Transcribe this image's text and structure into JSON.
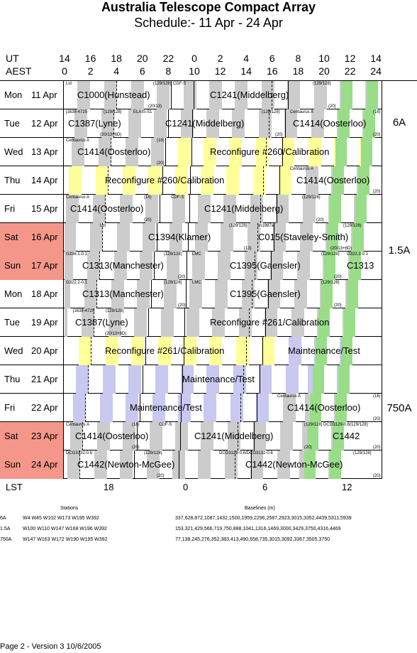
{
  "header": {
    "title": "Australia Telescope Compact Array",
    "subtitle": "Schedule:- 11 Apr - 24 Apr",
    "ut_label": "UT",
    "aest_label": "AEST",
    "ut_ticks": [
      "14",
      "16",
      "18",
      "20",
      "22",
      "0",
      "2",
      "4",
      "6",
      "8",
      "10",
      "12",
      "14"
    ],
    "aest_ticks": [
      "0",
      "2",
      "4",
      "6",
      "8",
      "10",
      "12",
      "14",
      "16",
      "18",
      "20",
      "22",
      "24"
    ]
  },
  "days": [
    {
      "dow": "Mon",
      "date": "11 Apr",
      "weekend": false,
      "labels": [
        {
          "t": "C1000(Hunstead)",
          "x": 18
        },
        {
          "t": "C1241(Middelberg)",
          "x": 205
        }
      ],
      "small": [
        {
          "t": "Lst",
          "x": 2,
          "top": true
        },
        {
          "t": "(129/128)",
          "x": 125,
          "top": true
        },
        {
          "t": "(20/13)",
          "x": 118,
          "top": false
        },
        {
          "t": "CDF-S",
          "x": 153,
          "top": true
        },
        {
          "t": "(129/128)",
          "x": 350,
          "top": true
        },
        {
          "t": "(20)",
          "x": 372,
          "top": false
        }
      ]
    },
    {
      "dow": "Tue",
      "date": "12 Apr",
      "weekend": false,
      "labels": [
        {
          "t": "C1387(Lyne)",
          "x": 5
        },
        {
          "t": "C1241(Middelberg)",
          "x": 142
        },
        {
          "t": "C1414(Oosterloo)",
          "x": 322
        }
      ],
      "small": [
        {
          "t": "j1638-4725",
          "x": 2,
          "top": true
        },
        {
          "t": "(129/128)",
          "x": 55,
          "top": true
        },
        {
          "t": "ELAIS-S1",
          "x": 97,
          "top": true
        },
        {
          "t": "(20/13+6D)",
          "x": 50,
          "top": false
        },
        {
          "t": "(129/128)",
          "x": 278,
          "top": true
        },
        {
          "t": "(20)",
          "x": 297,
          "top": false
        },
        {
          "t": "Centaurus A",
          "x": 318,
          "top": true
        },
        {
          "t": "(16)",
          "x": 435,
          "top": true
        },
        {
          "t": "(20)",
          "x": 435,
          "top": false
        }
      ]
    },
    {
      "dow": "Wed",
      "date": "13 Apr",
      "weekend": false,
      "labels": [
        {
          "t": "C1414(Oosterloo)",
          "x": 18
        },
        {
          "t": "Reconfigure #260/Calibration",
          "x": 205
        }
      ],
      "small": [
        {
          "t": "Centaurus A",
          "x": 2,
          "top": true
        },
        {
          "t": "(16)",
          "x": 130,
          "top": true
        },
        {
          "t": "(20)",
          "x": 130,
          "top": false
        }
      ]
    },
    {
      "dow": "Thu",
      "date": "14 Apr",
      "weekend": false,
      "labels": [
        {
          "t": "Reconfigure #260/Calibration",
          "x": 57
        },
        {
          "t": "C1414(Oosterloo)",
          "x": 327
        }
      ],
      "small": [
        {
          "t": "Centaurus A",
          "x": 318,
          "top": true
        },
        {
          "t": "(20)",
          "x": 435,
          "top": false
        }
      ]
    },
    {
      "dow": "Fri",
      "date": "15 Apr",
      "weekend": false,
      "labels": [
        {
          "t": "C1414(Oosterloo)",
          "x": 8
        },
        {
          "t": "C1241(Middelberg)",
          "x": 197
        }
      ],
      "small": [
        {
          "t": "Centaurus A",
          "x": 2,
          "top": true
        },
        {
          "t": "(16)",
          "x": 112,
          "top": true
        },
        {
          "t": "(20)",
          "x": 112,
          "top": false
        },
        {
          "t": "CDF-S",
          "x": 150,
          "top": true
        },
        {
          "t": "(129/128)",
          "x": 335,
          "top": true
        },
        {
          "t": "(20)",
          "x": 355,
          "top": false
        }
      ]
    },
    {
      "dow": "Sat",
      "date": "16 Apr",
      "weekend": true,
      "labels": [
        {
          "t": "C1394(Klamer)",
          "x": 118
        },
        {
          "t": "C015(Staveley-Smith)",
          "x": 273
        }
      ],
      "small": [
        {
          "t": "Lst",
          "x": 50,
          "top": true
        },
        {
          "t": "(129/128)",
          "x": 232,
          "top": true
        },
        {
          "t": "(13)",
          "x": 253,
          "top": false
        },
        {
          "t": "sn1987a",
          "x": 272,
          "top": true
        },
        {
          "t": "(129/128)",
          "x": 393,
          "top": true
        },
        {
          "t": "(20/13+6D)",
          "x": 375,
          "top": false
        }
      ]
    },
    {
      "dow": "Sun",
      "date": "17 Apr",
      "weekend": true,
      "labels": [
        {
          "t": "C1313(Manchester)",
          "x": 25
        },
        {
          "t": "C1395(Gaensler)",
          "x": 233
        },
        {
          "t": "C1313",
          "x": 398
        }
      ],
      "small": [
        {
          "t": "G336.1-0.1",
          "x": 2,
          "top": true
        },
        {
          "t": "(129/128)",
          "x": 140,
          "top": true
        },
        {
          "t": "(20)",
          "x": 160,
          "top": false
        },
        {
          "t": "LMC",
          "x": 180,
          "top": true
        },
        {
          "t": "(129/128)",
          "x": 362,
          "top": true
        },
        {
          "t": "(20)",
          "x": 380,
          "top": false
        },
        {
          "t": "G322.2-0.1",
          "x": 398,
          "top": true
        }
      ]
    },
    {
      "dow": "Mon",
      "date": "18 Apr",
      "weekend": false,
      "labels": [
        {
          "t": "C1313(Manchester)",
          "x": 25
        },
        {
          "t": "C1395(Gaensler)",
          "x": 233
        }
      ],
      "small": [
        {
          "t": "G322.2-0.1",
          "x": 2,
          "top": true
        },
        {
          "t": "(129/128)",
          "x": 140,
          "top": true
        },
        {
          "t": "(20)",
          "x": 160,
          "top": false
        },
        {
          "t": "LMC",
          "x": 180,
          "top": true
        },
        {
          "t": "(129/128)",
          "x": 362,
          "top": true
        },
        {
          "t": "(20)",
          "x": 380,
          "top": false
        }
      ]
    },
    {
      "dow": "Tue",
      "date": "19 Apr",
      "weekend": false,
      "labels": [
        {
          "t": "C1387(Lyne)",
          "x": 15
        },
        {
          "t": "Reconfigure #261/Calibration",
          "x": 205
        }
      ],
      "small": [
        {
          "t": "j1638-4725",
          "x": 12,
          "top": true
        },
        {
          "t": "(129/128)",
          "x": 58,
          "top": true
        },
        {
          "t": "(20/13+6D)",
          "x": 57,
          "top": false
        }
      ]
    },
    {
      "dow": "Wed",
      "date": "20 Apr",
      "weekend": false,
      "labels": [
        {
          "t": "Reconfigure #261/Calibration",
          "x": 57
        },
        {
          "t": "Maintenance/Test",
          "x": 315
        }
      ],
      "small": []
    },
    {
      "dow": "Thu",
      "date": "21 Apr",
      "weekend": false,
      "labels": [
        {
          "t": "Maintenance/Test",
          "x": 166
        }
      ],
      "small": []
    },
    {
      "dow": "Fri",
      "date": "22 Apr",
      "weekend": false,
      "labels": [
        {
          "t": "Maintenance/Test",
          "x": 92
        },
        {
          "t": "C1414(Oosterloo)",
          "x": 314
        }
      ],
      "small": [
        {
          "t": "Centaurus A",
          "x": 300,
          "top": true
        },
        {
          "t": "(16)",
          "x": 435,
          "top": true
        },
        {
          "t": "(20)",
          "x": 435,
          "top": false
        }
      ]
    },
    {
      "dow": "Sat",
      "date": "23 Apr",
      "weekend": true,
      "labels": [
        {
          "t": "C1414(Oosterloo)",
          "x": 15
        },
        {
          "t": "C1241(Middelberg)",
          "x": 183
        },
        {
          "t": "C1442",
          "x": 378
        }
      ],
      "small": [
        {
          "t": "Centaurus A",
          "x": 2,
          "top": true
        },
        {
          "t": "(16)",
          "x": 95,
          "top": true
        },
        {
          "t": "(20)",
          "x": 95,
          "top": false
        },
        {
          "t": "CDF-S",
          "x": 133,
          "top": true
        },
        {
          "t": "(129/128)",
          "x": 338,
          "top": true
        },
        {
          "t": "(20)",
          "x": 338,
          "top": false
        },
        {
          "t": "DCG3129-0.6(129/128)",
          "x": 365,
          "top": true
        },
        {
          "t": "(20)",
          "x": 435,
          "top": false
        }
      ]
    },
    {
      "dow": "Sun",
      "date": "24 Apr",
      "weekend": true,
      "labels": [
        {
          "t": "C1442(Newton-McGee)",
          "x": 18
        },
        {
          "t": "C1442(Newton-McGee)",
          "x": 255
        }
      ],
      "small": [
        {
          "t": "DCG3132-0.6",
          "x": 2,
          "top": true
        },
        {
          "t": "(129/128)",
          "x": 112,
          "top": true
        },
        {
          "t": "(20)",
          "x": 130,
          "top": false
        },
        {
          "t": "DCG3129-0.6/DCG3132-0.6",
          "x": 218,
          "top": true
        },
        {
          "t": "(129/128)",
          "x": 407,
          "top": true
        },
        {
          "t": "(20)",
          "x": 435,
          "top": false
        }
      ]
    }
  ],
  "configs": [
    {
      "label": "6A"
    },
    {
      "label": "1.5A"
    },
    {
      "label": "750A"
    }
  ],
  "lst": {
    "label": "LST",
    "ticks": [
      "18",
      "0",
      "6",
      "12"
    ]
  },
  "stations": {
    "stations_title": "Stations",
    "baselines_title": "Baselines (m)",
    "rows": [
      {
        "cfg": "6A",
        "st": "W4 W45 W102 W173 W195 W392",
        "bl": "337,628,872,1087,1432,1500,1959,2296,2587,2923,3015,3352,4439,5311,5939"
      },
      {
        "cfg": "1.5A",
        "st": "W100 W110 W147 W168 W196 W392",
        "bl": "153,321,429,566,719,750,888,1041,1316,1469,3000,3429,3750,4316,4469"
      },
      {
        "cfg": "750A",
        "st": "W147 W163 W172 W190 W195 W392",
        "bl": "77,138,245,276,352,383,413,490,658,735,3015,3092,3367,3505,3750"
      }
    ]
  },
  "footer": "Page 2 - Version 3  10/6/2005",
  "colors": {
    "gray": "#cccccc",
    "yellow": "#ffff99",
    "green": "#99dd88",
    "lavender": "#c8c8f0",
    "weekend": "#f4978a"
  }
}
